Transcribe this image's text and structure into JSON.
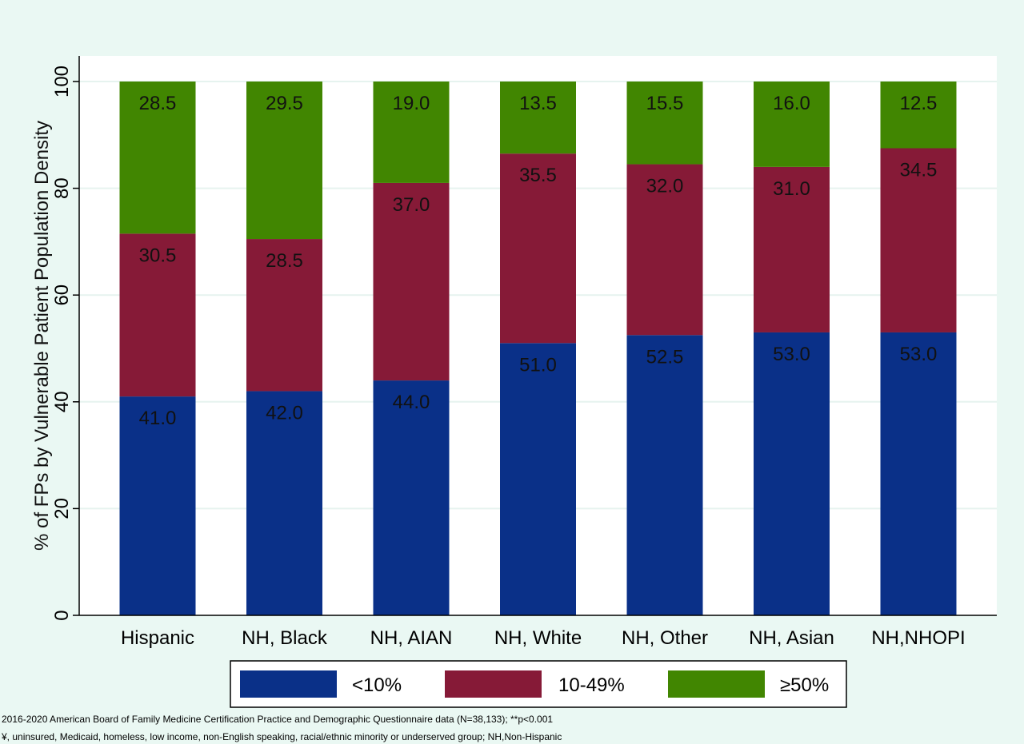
{
  "chart_data": {
    "type": "bar",
    "stacked": true,
    "categories": [
      "Hispanic",
      "NH, Black",
      "NH, AIAN",
      "NH, White",
      "NH, Other",
      "NH, Asian",
      "NH,NHOPI"
    ],
    "series": [
      {
        "name": "<10%",
        "color": "#0a3088",
        "values": [
          41.0,
          42.0,
          44.0,
          51.0,
          52.5,
          53.0,
          53.0
        ]
      },
      {
        "name": "10-49%",
        "color": "#861a37",
        "values": [
          30.5,
          28.5,
          37.0,
          35.5,
          32.0,
          31.0,
          34.5
        ]
      },
      {
        "name": "≥50%",
        "color": "#418601",
        "values": [
          28.5,
          29.5,
          19.0,
          13.5,
          15.5,
          16.0,
          12.5
        ]
      }
    ],
    "data_labels": [
      [
        "41.0",
        "42.0",
        "44.0",
        "51.0",
        "52.5",
        "53.0",
        "53.0"
      ],
      [
        "30.5",
        "28.5",
        "37.0",
        "35.5",
        "32.0",
        "31.0",
        "34.5"
      ],
      [
        "28.5",
        "29.5",
        "19.0",
        "13.5",
        "15.5",
        "16.0",
        "12.5"
      ]
    ],
    "title": "",
    "xlabel": "",
    "ylabel": "% of FPs by Vulnerable Patient Population Density",
    "ylim": [
      0,
      100
    ],
    "yticks": [
      0,
      20,
      40,
      60,
      80,
      100
    ],
    "grid": true,
    "legend_position": "bottom"
  },
  "footnotes": [
    "2016-2020 American Board of Family Medicine Certification Practice and Demographic Questionnaire data (N=38,133); **p<0.001",
    "¥, uninsured, Medicaid, homeless, low income, non-English speaking, racial/ethnic minority or underserved group; NH,Non-Hispanic"
  ],
  "colors": {
    "background": "#eaf8f3",
    "plot_background": "#ffffff",
    "gridline": "#e6f3ef"
  }
}
